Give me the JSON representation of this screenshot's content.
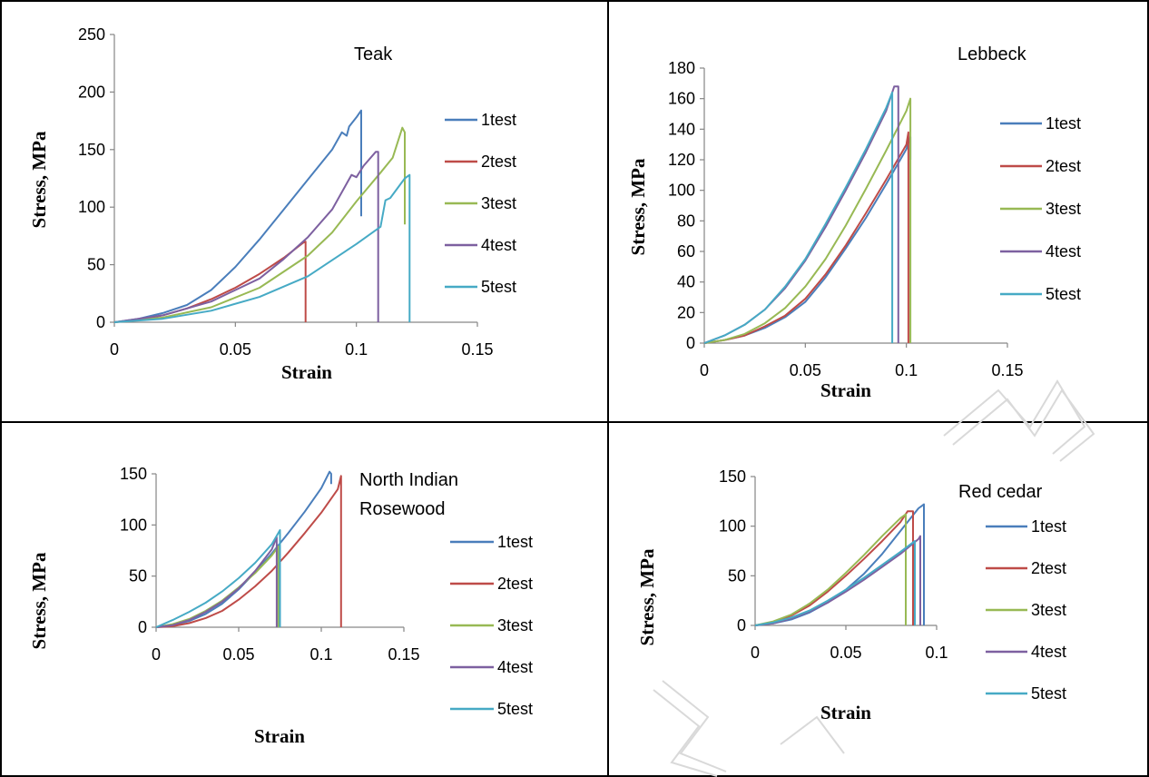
{
  "colors": {
    "1test": "#4a7ebb",
    "2test": "#be4b48",
    "3test": "#98b954",
    "4test": "#7d60a0",
    "5test": "#46aac5",
    "grid_border": "#000000",
    "axis": "#868686",
    "watermark": "#d9d9d9"
  },
  "chart_data": [
    {
      "type": "line",
      "title": "Teak",
      "xlabel": "Strain",
      "ylabel": "Stress, MPa",
      "xlim": [
        0,
        0.15
      ],
      "ylim": [
        0,
        250
      ],
      "xticks": [
        "0",
        "0.05",
        "0.1",
        "0.15"
      ],
      "yticks": [
        "0",
        "50",
        "100",
        "150",
        "200",
        "250"
      ],
      "legend_position": "right",
      "grid": false,
      "series": [
        {
          "name": "1test",
          "x": [
            0,
            0.01,
            0.02,
            0.03,
            0.04,
            0.05,
            0.06,
            0.07,
            0.08,
            0.09,
            0.094,
            0.096,
            0.097,
            0.1,
            0.102,
            0.102
          ],
          "y": [
            0,
            3,
            8,
            15,
            28,
            48,
            72,
            98,
            124,
            150,
            165,
            162,
            170,
            178,
            184,
            92
          ]
        },
        {
          "name": "2test",
          "x": [
            0,
            0.01,
            0.02,
            0.03,
            0.04,
            0.05,
            0.06,
            0.07,
            0.078,
            0.079,
            0.079
          ],
          "y": [
            0,
            2,
            6,
            12,
            20,
            30,
            42,
            56,
            69,
            70,
            0
          ]
        },
        {
          "name": "3test",
          "x": [
            0,
            0.02,
            0.04,
            0.06,
            0.08,
            0.09,
            0.1,
            0.11,
            0.115,
            0.119,
            0.12,
            0.12
          ],
          "y": [
            0,
            4,
            13,
            30,
            58,
            78,
            105,
            130,
            143,
            169,
            165,
            85
          ]
        },
        {
          "name": "4test",
          "x": [
            0,
            0.02,
            0.04,
            0.06,
            0.07,
            0.08,
            0.09,
            0.098,
            0.1,
            0.103,
            0.108,
            0.109,
            0.109
          ],
          "y": [
            0,
            6,
            18,
            38,
            55,
            74,
            98,
            128,
            126,
            136,
            148,
            148,
            0
          ]
        },
        {
          "name": "5test",
          "x": [
            0,
            0.02,
            0.04,
            0.06,
            0.08,
            0.1,
            0.11,
            0.112,
            0.114,
            0.12,
            0.122,
            0.122
          ],
          "y": [
            0,
            3,
            10,
            22,
            40,
            68,
            83,
            106,
            108,
            125,
            128,
            0
          ]
        }
      ]
    },
    {
      "type": "line",
      "title": "Lebbeck",
      "xlabel": "Strain",
      "ylabel": "Stress, MPa",
      "xlim": [
        0,
        0.15
      ],
      "ylim": [
        0,
        180
      ],
      "xticks": [
        "0",
        "0.05",
        "0.1",
        "0.15"
      ],
      "yticks": [
        "0",
        "20",
        "40",
        "60",
        "80",
        "100",
        "120",
        "140",
        "160",
        "180"
      ],
      "legend_position": "right",
      "grid": false,
      "series": [
        {
          "name": "1test",
          "x": [
            0,
            0.01,
            0.02,
            0.03,
            0.04,
            0.05,
            0.06,
            0.07,
            0.08,
            0.09,
            0.1,
            0.102,
            0.102
          ],
          "y": [
            0,
            2,
            5,
            10,
            17,
            27,
            43,
            62,
            82,
            104,
            127,
            135,
            120
          ]
        },
        {
          "name": "2test",
          "x": [
            0,
            0.01,
            0.02,
            0.03,
            0.04,
            0.05,
            0.06,
            0.07,
            0.08,
            0.09,
            0.1,
            0.101,
            0.101
          ],
          "y": [
            0,
            2,
            5,
            11,
            18,
            29,
            45,
            64,
            85,
            107,
            130,
            138,
            0
          ]
        },
        {
          "name": "3test",
          "x": [
            0,
            0.01,
            0.02,
            0.03,
            0.04,
            0.05,
            0.06,
            0.07,
            0.08,
            0.09,
            0.1,
            0.102,
            0.102
          ],
          "y": [
            0,
            2,
            6,
            13,
            23,
            37,
            55,
            77,
            101,
            126,
            152,
            160,
            0
          ]
        },
        {
          "name": "4test",
          "x": [
            0,
            0.01,
            0.02,
            0.03,
            0.04,
            0.05,
            0.06,
            0.07,
            0.08,
            0.09,
            0.094,
            0.096,
            0.096
          ],
          "y": [
            0,
            5,
            12,
            22,
            36,
            54,
            76,
            100,
            125,
            152,
            168,
            168,
            0
          ]
        },
        {
          "name": "5test",
          "x": [
            0,
            0.01,
            0.02,
            0.03,
            0.04,
            0.05,
            0.06,
            0.07,
            0.08,
            0.09,
            0.093,
            0.093
          ],
          "y": [
            0,
            5,
            12,
            22,
            37,
            55,
            78,
            102,
            127,
            154,
            164,
            0
          ]
        }
      ]
    },
    {
      "type": "line",
      "title": "North Indian Rosewood",
      "xlabel": "Strain",
      "ylabel": "Stress, MPa",
      "xlim": [
        0,
        0.15
      ],
      "ylim": [
        0,
        150
      ],
      "xticks": [
        "0",
        "0.05",
        "0.1",
        "0.15"
      ],
      "yticks": [
        "0",
        "50",
        "100",
        "150"
      ],
      "legend_position": "right",
      "grid": false,
      "series": [
        {
          "name": "1test",
          "x": [
            0,
            0.01,
            0.02,
            0.03,
            0.04,
            0.05,
            0.06,
            0.07,
            0.08,
            0.09,
            0.1,
            0.105,
            0.106,
            0.106
          ],
          "y": [
            0,
            2,
            6,
            13,
            23,
            37,
            54,
            72,
            92,
            113,
            136,
            152,
            150,
            140
          ]
        },
        {
          "name": "2test",
          "x": [
            0,
            0.01,
            0.02,
            0.03,
            0.04,
            0.05,
            0.06,
            0.07,
            0.08,
            0.09,
            0.1,
            0.11,
            0.112,
            0.112
          ],
          "y": [
            0,
            1,
            4,
            9,
            16,
            27,
            40,
            55,
            73,
            92,
            112,
            135,
            148,
            0
          ]
        },
        {
          "name": "3test",
          "x": [
            0,
            0.01,
            0.02,
            0.03,
            0.04,
            0.05,
            0.06,
            0.07,
            0.074,
            0.074
          ],
          "y": [
            0,
            3,
            8,
            16,
            26,
            39,
            53,
            70,
            79,
            0
          ]
        },
        {
          "name": "4test",
          "x": [
            0,
            0.01,
            0.02,
            0.03,
            0.04,
            0.05,
            0.06,
            0.07,
            0.073,
            0.073
          ],
          "y": [
            0,
            2,
            7,
            15,
            25,
            38,
            55,
            76,
            88,
            0
          ]
        },
        {
          "name": "5test",
          "x": [
            0,
            0.01,
            0.02,
            0.03,
            0.04,
            0.05,
            0.06,
            0.07,
            0.075,
            0.075
          ],
          "y": [
            0,
            7,
            15,
            24,
            35,
            48,
            63,
            81,
            95,
            0
          ]
        }
      ]
    },
    {
      "type": "line",
      "title": "Red cedar",
      "xlabel": "Strain",
      "ylabel": "Stress, MPa",
      "xlim": [
        0,
        0.1
      ],
      "ylim": [
        0,
        150
      ],
      "xticks": [
        "0",
        "0.05",
        "0.1"
      ],
      "yticks": [
        "0",
        "50",
        "100",
        "150"
      ],
      "legend_position": "right",
      "grid": false,
      "series": [
        {
          "name": "1test",
          "x": [
            0,
            0.01,
            0.02,
            0.03,
            0.04,
            0.05,
            0.06,
            0.07,
            0.08,
            0.09,
            0.093,
            0.093
          ],
          "y": [
            0,
            2,
            6,
            13,
            23,
            36,
            52,
            72,
            95,
            118,
            122,
            0
          ]
        },
        {
          "name": "2test",
          "x": [
            0,
            0.01,
            0.02,
            0.03,
            0.04,
            0.05,
            0.06,
            0.07,
            0.08,
            0.084,
            0.087,
            0.087
          ],
          "y": [
            0,
            3,
            10,
            20,
            34,
            50,
            67,
            85,
            104,
            115,
            115,
            0
          ]
        },
        {
          "name": "3test",
          "x": [
            0,
            0.01,
            0.02,
            0.03,
            0.04,
            0.05,
            0.06,
            0.07,
            0.08,
            0.083,
            0.083
          ],
          "y": [
            0,
            4,
            11,
            22,
            36,
            53,
            71,
            90,
            108,
            112,
            0
          ]
        },
        {
          "name": "4test",
          "x": [
            0,
            0.01,
            0.02,
            0.03,
            0.04,
            0.05,
            0.06,
            0.07,
            0.08,
            0.09,
            0.091,
            0.091
          ],
          "y": [
            0,
            2,
            7,
            14,
            23,
            34,
            46,
            59,
            72,
            87,
            90,
            0
          ]
        },
        {
          "name": "5test",
          "x": [
            0,
            0.01,
            0.02,
            0.03,
            0.04,
            0.05,
            0.06,
            0.07,
            0.08,
            0.088,
            0.088
          ],
          "y": [
            0,
            3,
            8,
            15,
            25,
            36,
            48,
            61,
            74,
            85,
            0
          ]
        }
      ]
    }
  ]
}
